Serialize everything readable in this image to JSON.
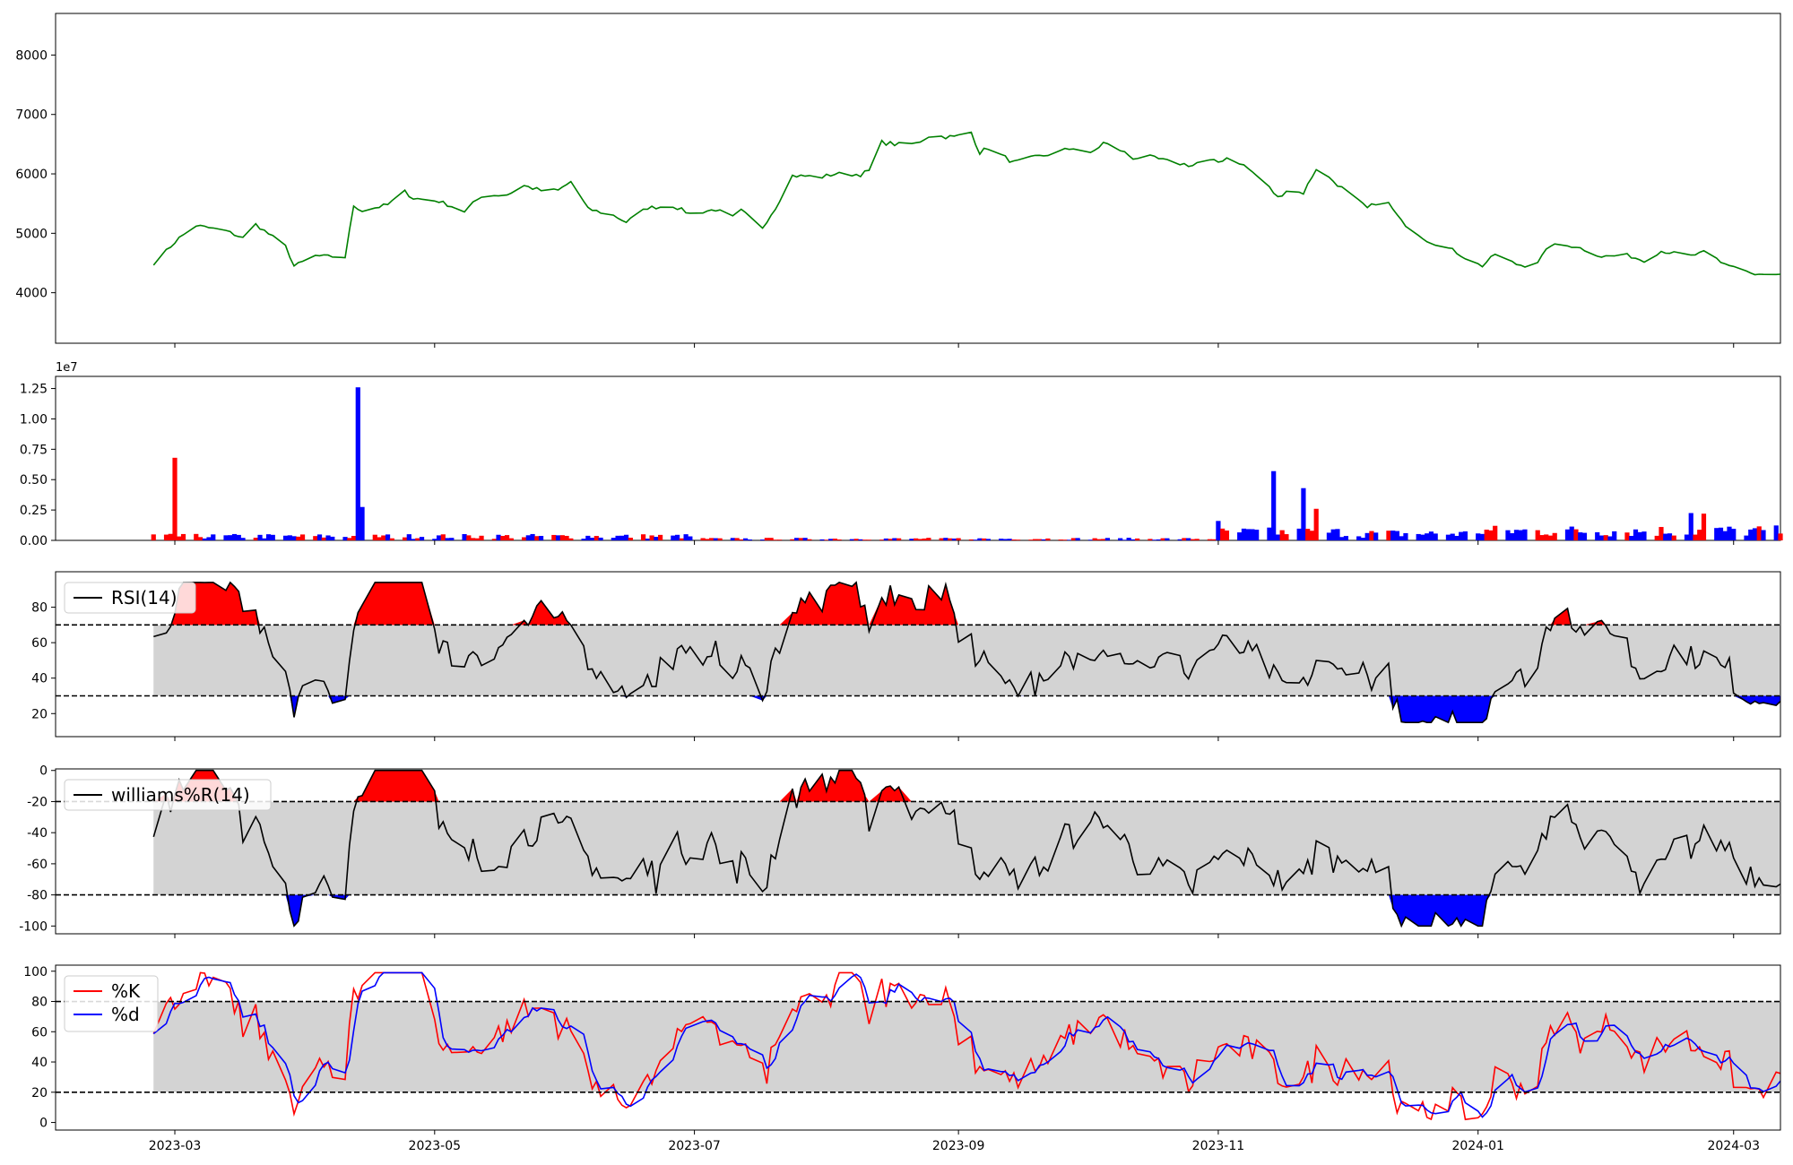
{
  "chart_data": {
    "type": "line",
    "x_axis": {
      "type": "date",
      "range": [
        "2023-02-01",
        "2024-03-12"
      ],
      "ticks": [
        "2023-03",
        "2023-05",
        "2023-07",
        "2023-09",
        "2023-11",
        "2024-01",
        "2024-03"
      ],
      "tick_dates": [
        "2023-03-01",
        "2023-05-01",
        "2023-07-01",
        "2023-09-01",
        "2023-11-01",
        "2024-01-01",
        "2024-03-01"
      ],
      "grid": false
    },
    "panels": [
      {
        "id": "price",
        "type": "line",
        "ylim": [
          3150,
          8700
        ],
        "yticks": [
          4000,
          5000,
          6000,
          7000,
          8000
        ],
        "series": [
          {
            "color": "#008000",
            "points": [
              [
                "2023-02-24",
                4490
              ],
              [
                "2023-03-02",
                4920
              ],
              [
                "2023-03-06",
                5130
              ],
              [
                "2023-03-13",
                5040
              ],
              [
                "2023-03-17",
                4920
              ],
              [
                "2023-03-20",
                5150
              ],
              [
                "2023-03-27",
                4780
              ],
              [
                "2023-03-29",
                4450
              ],
              [
                "2023-04-03",
                4620
              ],
              [
                "2023-04-10",
                4600
              ],
              [
                "2023-04-12",
                5470
              ],
              [
                "2023-04-14",
                5380
              ],
              [
                "2023-04-20",
                5480
              ],
              [
                "2023-04-24",
                5700
              ],
              [
                "2023-04-26",
                5590
              ],
              [
                "2023-05-02",
                5540
              ],
              [
                "2023-05-08",
                5370
              ],
              [
                "2023-05-12",
                5630
              ],
              [
                "2023-05-18",
                5650
              ],
              [
                "2023-05-22",
                5800
              ],
              [
                "2023-05-26",
                5720
              ],
              [
                "2023-05-30",
                5720
              ],
              [
                "2023-06-02",
                5870
              ],
              [
                "2023-06-06",
                5410
              ],
              [
                "2023-06-12",
                5300
              ],
              [
                "2023-06-15",
                5190
              ],
              [
                "2023-06-20",
                5430
              ],
              [
                "2023-06-26",
                5460
              ],
              [
                "2023-06-30",
                5330
              ],
              [
                "2023-07-06",
                5400
              ],
              [
                "2023-07-10",
                5270
              ],
              [
                "2023-07-12",
                5380
              ],
              [
                "2023-07-17",
                5100
              ],
              [
                "2023-07-20",
                5430
              ],
              [
                "2023-07-24",
                5970
              ],
              [
                "2023-07-31",
                5950
              ],
              [
                "2023-08-03",
                6000
              ],
              [
                "2023-08-09",
                5990
              ],
              [
                "2023-08-11",
                6050
              ],
              [
                "2023-08-14",
                6530
              ],
              [
                "2023-08-18",
                6490
              ],
              [
                "2023-08-22",
                6510
              ],
              [
                "2023-08-25",
                6640
              ],
              [
                "2023-08-31",
                6620
              ],
              [
                "2023-09-04",
                6700
              ],
              [
                "2023-09-06",
                6360
              ],
              [
                "2023-09-08",
                6440
              ],
              [
                "2023-09-14",
                6190
              ],
              [
                "2023-09-18",
                6260
              ],
              [
                "2023-09-24",
                6360
              ],
              [
                "2023-09-28",
                6440
              ],
              [
                "2023-10-02",
                6330
              ],
              [
                "2023-10-05",
                6520
              ],
              [
                "2023-10-09",
                6400
              ],
              [
                "2023-10-12",
                6270
              ],
              [
                "2023-10-16",
                6280
              ],
              [
                "2023-10-20",
                6210
              ],
              [
                "2023-10-26",
                6140
              ],
              [
                "2023-10-28",
                6230
              ],
              [
                "2023-11-01",
                6200
              ],
              [
                "2023-11-04",
                6310
              ],
              [
                "2023-11-06",
                6190
              ],
              [
                "2023-11-08",
                6090
              ],
              [
                "2023-11-12",
                5850
              ],
              [
                "2023-11-15",
                5600
              ],
              [
                "2023-11-17",
                5720
              ],
              [
                "2023-11-21",
                5680
              ],
              [
                "2023-11-24",
                6090
              ],
              [
                "2023-11-28",
                5880
              ],
              [
                "2023-12-06",
                5420
              ],
              [
                "2023-12-10",
                5600
              ],
              [
                "2023-12-14",
                5200
              ],
              [
                "2023-12-20",
                4880
              ],
              [
                "2023-12-26",
                4720
              ],
              [
                "2023-12-30",
                4540
              ],
              [
                "2024-01-02",
                4450
              ],
              [
                "2024-01-05",
                4650
              ],
              [
                "2024-01-10",
                4480
              ],
              [
                "2024-01-14",
                4430
              ],
              [
                "2024-01-18",
                4800
              ],
              [
                "2024-01-24",
                4780
              ],
              [
                "2024-01-30",
                4610
              ],
              [
                "2024-02-05",
                4630
              ],
              [
                "2024-02-09",
                4540
              ],
              [
                "2024-02-13",
                4700
              ],
              [
                "2024-02-20",
                4620
              ],
              [
                "2024-02-24",
                4700
              ],
              [
                "2024-02-27",
                4500
              ],
              [
                "2024-03-02",
                4430
              ],
              [
                "2024-03-06",
                4300
              ],
              [
                "2024-03-12",
                4300
              ]
            ]
          }
        ]
      },
      {
        "id": "volume",
        "type": "bar",
        "ylim": [
          0,
          13500000
        ],
        "yticks": [
          0,
          2500000,
          5000000,
          7500000,
          10000000,
          12500000
        ],
        "ytick_labels": [
          "0.00",
          "0.25",
          "0.50",
          "0.75",
          "1.00",
          "1.25"
        ],
        "offset_label": "1e7"
      },
      {
        "id": "rsi",
        "type": "area",
        "legend": "RSI(14)",
        "legend_position": "upper-left",
        "ylim": [
          7,
          100
        ],
        "yticks": [
          20,
          40,
          60,
          80
        ],
        "upper": 70,
        "lower": 30
      },
      {
        "id": "williams",
        "type": "area",
        "legend": "williams%R(14)",
        "legend_position": "upper-left",
        "ylim": [
          -105,
          1
        ],
        "yticks": [
          -100,
          -80,
          -60,
          -40,
          -20,
          0
        ],
        "upper": -20,
        "lower": -80
      },
      {
        "id": "stoch",
        "type": "line",
        "legend": [
          "%K",
          "%d"
        ],
        "legend_position": "upper-left",
        "ylim": [
          -5,
          104
        ],
        "yticks": [
          0,
          20,
          40,
          60,
          80,
          100
        ],
        "upper": 80,
        "lower": 20
      }
    ]
  },
  "colors": {
    "price": "#008000",
    "up": "#ff0000",
    "down": "#0000ff",
    "band": "#d3d3d3",
    "line": "#000000",
    "k": "#ff0000",
    "d": "#0000ff"
  }
}
